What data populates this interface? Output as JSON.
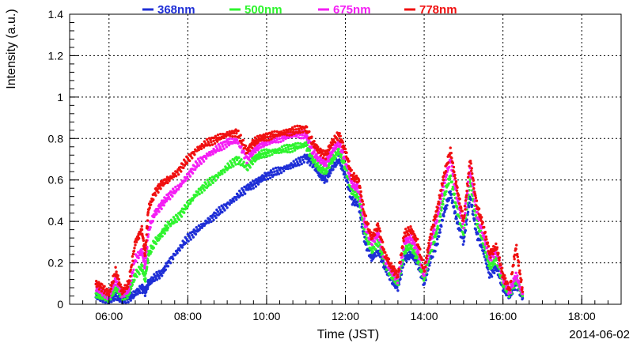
{
  "chart_data": {
    "type": "scatter",
    "title": "",
    "xlabel": "Time (JST)",
    "ylabel": "Intensity (a.u.)",
    "date": "2014-06-02",
    "xlim_hours": [
      5.0,
      19.0
    ],
    "ylim": [
      0,
      1.4
    ],
    "x_ticks": [
      "06:00",
      "08:00",
      "10:00",
      "12:00",
      "14:00",
      "16:00",
      "18:00"
    ],
    "y_ticks": [
      "0",
      "0.2",
      "0.4",
      "0.6",
      "0.8",
      "1",
      "1.2",
      "1.4"
    ],
    "grid": true,
    "legend_position": "top",
    "series": [
      {
        "name": "368nm",
        "color": "#1f2fd6",
        "points": [
          [
            "05:40",
            0.04
          ],
          [
            "05:50",
            0.03
          ],
          [
            "06:00",
            0.02
          ],
          [
            "06:10",
            0.04
          ],
          [
            "06:20",
            0.02
          ],
          [
            "06:30",
            0.03
          ],
          [
            "06:40",
            0.05
          ],
          [
            "06:50",
            0.08
          ],
          [
            "06:55",
            0.06
          ],
          [
            "07:00",
            0.1
          ],
          [
            "07:10",
            0.13
          ],
          [
            "07:20",
            0.15
          ],
          [
            "07:30",
            0.2
          ],
          [
            "07:45",
            0.26
          ],
          [
            "08:00",
            0.32
          ],
          [
            "08:15",
            0.36
          ],
          [
            "08:30",
            0.4
          ],
          [
            "08:45",
            0.44
          ],
          [
            "09:00",
            0.48
          ],
          [
            "09:15",
            0.52
          ],
          [
            "09:30",
            0.56
          ],
          [
            "09:40",
            0.58
          ],
          [
            "09:50",
            0.6
          ],
          [
            "10:00",
            0.62
          ],
          [
            "10:15",
            0.64
          ],
          [
            "10:30",
            0.66
          ],
          [
            "10:45",
            0.68
          ],
          [
            "11:00",
            0.71
          ],
          [
            "11:10",
            0.68
          ],
          [
            "11:20",
            0.63
          ],
          [
            "11:30",
            0.6
          ],
          [
            "11:40",
            0.66
          ],
          [
            "11:50",
            0.7
          ],
          [
            "12:00",
            0.62
          ],
          [
            "12:10",
            0.5
          ],
          [
            "12:20",
            0.48
          ],
          [
            "12:30",
            0.3
          ],
          [
            "12:40",
            0.22
          ],
          [
            "12:50",
            0.26
          ],
          [
            "13:00",
            0.18
          ],
          [
            "13:10",
            0.12
          ],
          [
            "13:20",
            0.08
          ],
          [
            "13:30",
            0.22
          ],
          [
            "13:40",
            0.24
          ],
          [
            "13:50",
            0.2
          ],
          [
            "14:00",
            0.1
          ],
          [
            "14:10",
            0.22
          ],
          [
            "14:20",
            0.3
          ],
          [
            "14:30",
            0.44
          ],
          [
            "14:40",
            0.54
          ],
          [
            "14:50",
            0.4
          ],
          [
            "15:00",
            0.3
          ],
          [
            "15:10",
            0.52
          ],
          [
            "15:20",
            0.34
          ],
          [
            "15:30",
            0.26
          ],
          [
            "15:40",
            0.14
          ],
          [
            "15:50",
            0.18
          ],
          [
            "16:00",
            0.08
          ],
          [
            "16:10",
            0.04
          ],
          [
            "16:20",
            0.1
          ],
          [
            "16:30",
            0.03
          ]
        ]
      },
      {
        "name": "500nm",
        "color": "#2ef42e",
        "points": [
          [
            "05:40",
            0.05
          ],
          [
            "05:50",
            0.04
          ],
          [
            "06:00",
            0.03
          ],
          [
            "06:10",
            0.08
          ],
          [
            "06:20",
            0.04
          ],
          [
            "06:30",
            0.05
          ],
          [
            "06:40",
            0.14
          ],
          [
            "06:50",
            0.18
          ],
          [
            "06:55",
            0.12
          ],
          [
            "07:00",
            0.24
          ],
          [
            "07:10",
            0.3
          ],
          [
            "07:20",
            0.34
          ],
          [
            "07:30",
            0.38
          ],
          [
            "07:45",
            0.42
          ],
          [
            "08:00",
            0.48
          ],
          [
            "08:15",
            0.54
          ],
          [
            "08:30",
            0.58
          ],
          [
            "08:45",
            0.62
          ],
          [
            "09:00",
            0.66
          ],
          [
            "09:15",
            0.7
          ],
          [
            "09:30",
            0.66
          ],
          [
            "09:40",
            0.7
          ],
          [
            "09:50",
            0.72
          ],
          [
            "10:00",
            0.73
          ],
          [
            "10:15",
            0.74
          ],
          [
            "10:30",
            0.75
          ],
          [
            "10:45",
            0.76
          ],
          [
            "11:00",
            0.77
          ],
          [
            "11:10",
            0.7
          ],
          [
            "11:20",
            0.66
          ],
          [
            "11:30",
            0.64
          ],
          [
            "11:40",
            0.7
          ],
          [
            "11:50",
            0.74
          ],
          [
            "12:00",
            0.66
          ],
          [
            "12:10",
            0.54
          ],
          [
            "12:20",
            0.52
          ],
          [
            "12:30",
            0.34
          ],
          [
            "12:40",
            0.26
          ],
          [
            "12:50",
            0.3
          ],
          [
            "13:00",
            0.2
          ],
          [
            "13:10",
            0.14
          ],
          [
            "13:20",
            0.1
          ],
          [
            "13:30",
            0.26
          ],
          [
            "13:40",
            0.28
          ],
          [
            "13:50",
            0.22
          ],
          [
            "14:00",
            0.12
          ],
          [
            "14:10",
            0.26
          ],
          [
            "14:20",
            0.36
          ],
          [
            "14:30",
            0.52
          ],
          [
            "14:40",
            0.62
          ],
          [
            "14:50",
            0.46
          ],
          [
            "15:00",
            0.34
          ],
          [
            "15:10",
            0.6
          ],
          [
            "15:20",
            0.4
          ],
          [
            "15:30",
            0.3
          ],
          [
            "15:40",
            0.18
          ],
          [
            "15:50",
            0.22
          ],
          [
            "16:00",
            0.1
          ],
          [
            "16:10",
            0.05
          ],
          [
            "16:20",
            0.12
          ],
          [
            "16:30",
            0.04
          ]
        ]
      },
      {
        "name": "675nm",
        "color": "#f41ef4",
        "points": [
          [
            "05:40",
            0.08
          ],
          [
            "05:50",
            0.06
          ],
          [
            "06:00",
            0.04
          ],
          [
            "06:10",
            0.12
          ],
          [
            "06:20",
            0.05
          ],
          [
            "06:30",
            0.07
          ],
          [
            "06:40",
            0.22
          ],
          [
            "06:50",
            0.26
          ],
          [
            "06:55",
            0.18
          ],
          [
            "07:00",
            0.36
          ],
          [
            "07:10",
            0.44
          ],
          [
            "07:20",
            0.48
          ],
          [
            "07:30",
            0.52
          ],
          [
            "07:45",
            0.56
          ],
          [
            "08:00",
            0.62
          ],
          [
            "08:15",
            0.68
          ],
          [
            "08:30",
            0.72
          ],
          [
            "08:45",
            0.75
          ],
          [
            "09:00",
            0.78
          ],
          [
            "09:15",
            0.79
          ],
          [
            "09:30",
            0.7
          ],
          [
            "09:40",
            0.74
          ],
          [
            "09:50",
            0.77
          ],
          [
            "10:00",
            0.78
          ],
          [
            "10:15",
            0.8
          ],
          [
            "10:30",
            0.81
          ],
          [
            "10:45",
            0.82
          ],
          [
            "11:00",
            0.82
          ],
          [
            "11:10",
            0.74
          ],
          [
            "11:20",
            0.7
          ],
          [
            "11:30",
            0.68
          ],
          [
            "11:40",
            0.74
          ],
          [
            "11:50",
            0.78
          ],
          [
            "12:00",
            0.7
          ],
          [
            "12:10",
            0.58
          ],
          [
            "12:20",
            0.56
          ],
          [
            "12:30",
            0.38
          ],
          [
            "12:40",
            0.3
          ],
          [
            "12:50",
            0.34
          ],
          [
            "13:00",
            0.22
          ],
          [
            "13:10",
            0.16
          ],
          [
            "13:20",
            0.12
          ],
          [
            "13:30",
            0.3
          ],
          [
            "13:40",
            0.32
          ],
          [
            "13:50",
            0.26
          ],
          [
            "14:00",
            0.14
          ],
          [
            "14:10",
            0.3
          ],
          [
            "14:20",
            0.42
          ],
          [
            "14:30",
            0.58
          ],
          [
            "14:40",
            0.7
          ],
          [
            "14:50",
            0.52
          ],
          [
            "15:00",
            0.38
          ],
          [
            "15:10",
            0.66
          ],
          [
            "15:20",
            0.44
          ],
          [
            "15:30",
            0.34
          ],
          [
            "15:40",
            0.22
          ],
          [
            "15:50",
            0.26
          ],
          [
            "16:00",
            0.12
          ],
          [
            "16:10",
            0.06
          ],
          [
            "16:20",
            0.14
          ],
          [
            "16:30",
            0.05
          ]
        ]
      },
      {
        "name": "778nm",
        "color": "#f01010",
        "points": [
          [
            "05:40",
            0.1
          ],
          [
            "05:50",
            0.08
          ],
          [
            "06:00",
            0.05
          ],
          [
            "06:10",
            0.16
          ],
          [
            "06:20",
            0.06
          ],
          [
            "06:30",
            0.1
          ],
          [
            "06:40",
            0.3
          ],
          [
            "06:50",
            0.36
          ],
          [
            "06:55",
            0.24
          ],
          [
            "07:00",
            0.46
          ],
          [
            "07:10",
            0.54
          ],
          [
            "07:20",
            0.58
          ],
          [
            "07:30",
            0.6
          ],
          [
            "07:45",
            0.64
          ],
          [
            "08:00",
            0.7
          ],
          [
            "08:15",
            0.75
          ],
          [
            "08:30",
            0.78
          ],
          [
            "08:45",
            0.8
          ],
          [
            "09:00",
            0.82
          ],
          [
            "09:15",
            0.83
          ],
          [
            "09:30",
            0.74
          ],
          [
            "09:40",
            0.78
          ],
          [
            "09:50",
            0.8
          ],
          [
            "10:00",
            0.81
          ],
          [
            "10:15",
            0.82
          ],
          [
            "10:30",
            0.83
          ],
          [
            "10:45",
            0.84
          ],
          [
            "11:00",
            0.85
          ],
          [
            "11:10",
            0.78
          ],
          [
            "11:20",
            0.74
          ],
          [
            "11:30",
            0.72
          ],
          [
            "11:40",
            0.78
          ],
          [
            "11:50",
            0.82
          ],
          [
            "12:00",
            0.74
          ],
          [
            "12:10",
            0.62
          ],
          [
            "12:20",
            0.6
          ],
          [
            "12:30",
            0.42
          ],
          [
            "12:40",
            0.32
          ],
          [
            "12:50",
            0.38
          ],
          [
            "13:00",
            0.24
          ],
          [
            "13:10",
            0.18
          ],
          [
            "13:20",
            0.14
          ],
          [
            "13:30",
            0.34
          ],
          [
            "13:40",
            0.36
          ],
          [
            "13:50",
            0.3
          ],
          [
            "14:00",
            0.16
          ],
          [
            "14:10",
            0.34
          ],
          [
            "14:20",
            0.46
          ],
          [
            "14:30",
            0.62
          ],
          [
            "14:40",
            0.74
          ],
          [
            "14:50",
            0.56
          ],
          [
            "15:00",
            0.4
          ],
          [
            "15:10",
            0.7
          ],
          [
            "15:20",
            0.48
          ],
          [
            "15:30",
            0.38
          ],
          [
            "15:40",
            0.24
          ],
          [
            "15:50",
            0.28
          ],
          [
            "16:00",
            0.14
          ],
          [
            "16:10",
            0.07
          ],
          [
            "16:20",
            0.28
          ],
          [
            "16:30",
            0.06
          ]
        ]
      }
    ]
  }
}
